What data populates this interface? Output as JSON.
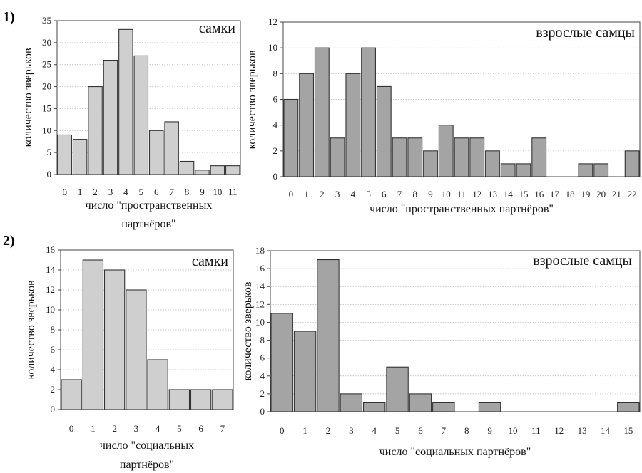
{
  "rows": [
    {
      "label": "1)"
    },
    {
      "label": "2)"
    }
  ],
  "chart_data": [
    {
      "type": "bar",
      "row": 0,
      "title": "самки",
      "ylabel": "количество зверьков",
      "xlabel": "число \"пространственных партнёров\"",
      "xlabel_lines": [
        "число \"пространственных",
        "партнёров\""
      ],
      "categories": [
        "0",
        "1",
        "2",
        "3",
        "4",
        "5",
        "6",
        "7",
        "8",
        "9",
        "10",
        "11"
      ],
      "values": [
        9,
        8,
        20,
        26,
        33,
        27,
        10,
        12,
        3,
        1,
        2,
        2
      ],
      "ylim": [
        0,
        35
      ],
      "yticks": [
        0,
        5,
        10,
        15,
        20,
        25,
        30,
        35
      ],
      "grid": true,
      "colors": {
        "bar": "#cfcfcf",
        "edge": "#333333"
      }
    },
    {
      "type": "bar",
      "row": 0,
      "title": "взрослые самцы",
      "ylabel": "количество зверьков",
      "xlabel": "число \"пространственных партнёров\"",
      "xlabel_lines": [
        "число \"пространственных партнёров\""
      ],
      "categories": [
        "0",
        "1",
        "2",
        "3",
        "4",
        "5",
        "6",
        "7",
        "8",
        "9",
        "10",
        "11",
        "12",
        "13",
        "14",
        "15",
        "16",
        "17",
        "18",
        "19",
        "20",
        "21",
        "22"
      ],
      "values": [
        6,
        8,
        10,
        3,
        8,
        10,
        7,
        3,
        3,
        2,
        4,
        3,
        3,
        2,
        1,
        1,
        3,
        0,
        0,
        1,
        1,
        0,
        2
      ],
      "ylim": [
        0,
        12
      ],
      "yticks": [
        0,
        2,
        4,
        6,
        8,
        10,
        12
      ],
      "grid": true,
      "colors": {
        "bar": "#a4a4a4",
        "edge": "#333333"
      }
    },
    {
      "type": "bar",
      "row": 1,
      "title": "самки",
      "ylabel": "количество зверьков",
      "xlabel": "число \"социальных партнёров\"",
      "xlabel_lines": [
        "число \"социальных",
        "партнёров\""
      ],
      "categories": [
        "0",
        "1",
        "2",
        "3",
        "4",
        "5",
        "6",
        "7"
      ],
      "values": [
        3,
        15,
        14,
        12,
        5,
        2,
        2,
        2
      ],
      "ylim": [
        0,
        16
      ],
      "yticks": [
        0,
        2,
        4,
        6,
        8,
        10,
        12,
        14,
        16
      ],
      "grid": true,
      "colors": {
        "bar": "#cfcfcf",
        "edge": "#333333"
      }
    },
    {
      "type": "bar",
      "row": 1,
      "title": "взрослые самцы",
      "ylabel": "количество зверьков",
      "xlabel": "число \"социальных партнёров\"",
      "xlabel_lines": [
        "число \"социальных партнёров\""
      ],
      "categories": [
        "0",
        "1",
        "2",
        "3",
        "4",
        "5",
        "6",
        "7",
        "8",
        "9",
        "10",
        "11",
        "12",
        "13",
        "14",
        "15"
      ],
      "values": [
        11,
        9,
        17,
        2,
        1,
        5,
        2,
        1,
        0,
        1,
        0,
        0,
        0,
        0,
        0,
        1
      ],
      "ylim": [
        0,
        18
      ],
      "yticks": [
        0,
        2,
        4,
        6,
        8,
        10,
        12,
        14,
        16,
        18
      ],
      "grid": true,
      "colors": {
        "bar": "#a4a4a4",
        "edge": "#333333"
      }
    }
  ]
}
